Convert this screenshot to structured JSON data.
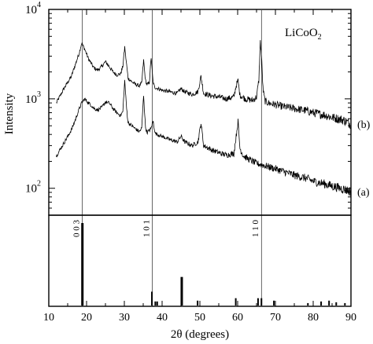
{
  "chart_data": {
    "type": "line",
    "xlabel": "2θ (degrees)",
    "ylabel": "Intensity",
    "xlim": [
      10,
      90
    ],
    "x_ticks": [
      10,
      20,
      30,
      40,
      50,
      60,
      70,
      80,
      90
    ],
    "upper_panel": {
      "yscale": "log",
      "ylim": [
        50,
        10000
      ],
      "y_ticks": [
        {
          "value": 100,
          "base": "10",
          "exp": "2"
        },
        {
          "value": 1000,
          "base": "10",
          "exp": "3"
        },
        {
          "value": 10000,
          "base": "10",
          "exp": "4"
        }
      ],
      "annotation": {
        "text_main": "LiCoO",
        "text_sub": "2"
      },
      "series": [
        {
          "name": "(b)",
          "x": [
            12,
            14,
            16,
            17,
            18,
            18.7,
            19.5,
            20.5,
            21.2,
            22,
            23,
            24,
            25,
            26,
            27,
            28,
            29,
            29.6,
            30.1,
            30.6,
            31,
            32,
            33,
            34,
            34.6,
            35.1,
            35.6,
            36,
            36.6,
            37.1,
            37.6,
            38,
            40,
            42,
            44,
            45,
            46,
            48,
            49.5,
            50.3,
            51,
            53,
            55,
            57,
            59,
            59.6,
            60.1,
            60.6,
            62,
            64,
            65,
            65.6,
            66,
            66.3,
            66.7,
            67.2,
            68,
            70,
            72,
            75,
            78,
            80,
            83,
            85,
            88,
            90
          ],
          "values": [
            900,
            1300,
            1800,
            2400,
            3200,
            4200,
            3600,
            2800,
            2500,
            2200,
            2100,
            2300,
            2600,
            2300,
            2000,
            1850,
            1900,
            2300,
            3800,
            2400,
            1700,
            1550,
            1450,
            1400,
            1500,
            2700,
            1600,
            1450,
            1500,
            2900,
            1550,
            1350,
            1250,
            1200,
            1150,
            1300,
            1200,
            1120,
            1200,
            1800,
            1150,
            1080,
            1050,
            1000,
            1050,
            1400,
            1600,
            1100,
            1000,
            960,
            1050,
            1600,
            4300,
            3100,
            1300,
            950,
            900,
            860,
            820,
            780,
            740,
            700,
            660,
            620,
            580,
            520
          ]
        },
        {
          "name": "(a)",
          "x": [
            12,
            14,
            16,
            17,
            18,
            18.7,
            19.5,
            20.5,
            21.2,
            22,
            23,
            24,
            25,
            26,
            27,
            28,
            29,
            29.6,
            30.1,
            30.6,
            31,
            32,
            33,
            34,
            34.6,
            35.1,
            35.6,
            36,
            37,
            37.6,
            38.2,
            40,
            42,
            44,
            45,
            46,
            48,
            49.5,
            50.3,
            51,
            53,
            55,
            57,
            59,
            59.6,
            60.1,
            60.6,
            61.5,
            63,
            65,
            67,
            70,
            72,
            75,
            78,
            80,
            83,
            85,
            88,
            90
          ],
          "values": [
            230,
            320,
            450,
            580,
            760,
            900,
            1000,
            900,
            850,
            780,
            750,
            800,
            920,
            900,
            780,
            700,
            650,
            720,
            1600,
            780,
            540,
            500,
            460,
            430,
            470,
            1100,
            480,
            420,
            460,
            560,
            410,
            380,
            350,
            330,
            380,
            330,
            300,
            330,
            540,
            300,
            270,
            250,
            235,
            245,
            380,
            560,
            280,
            230,
            210,
            190,
            180,
            165,
            155,
            140,
            130,
            120,
            112,
            106,
            98,
            92
          ]
        }
      ]
    },
    "lower_panel": {
      "type": "bar",
      "reference_lines": [
        {
          "x": 18.9,
          "label": "0 0 3"
        },
        {
          "x": 37.4,
          "label": "1 0 1"
        },
        {
          "x": 66.3,
          "label": "1 1 0"
        }
      ],
      "sticks": [
        {
          "x": 18.9,
          "value": 100
        },
        {
          "x": 37.3,
          "value": 16
        },
        {
          "x": 38.2,
          "value": 4
        },
        {
          "x": 38.7,
          "value": 4
        },
        {
          "x": 45.2,
          "value": 34
        },
        {
          "x": 49.4,
          "value": 5
        },
        {
          "x": 59.5,
          "value": 8
        },
        {
          "x": 65.4,
          "value": 8
        },
        {
          "x": 66.3,
          "value": 8
        },
        {
          "x": 69.6,
          "value": 5
        },
        {
          "x": 78.6,
          "value": 2
        },
        {
          "x": 82.1,
          "value": 4
        },
        {
          "x": 84.2,
          "value": 5
        },
        {
          "x": 86.1,
          "value": 3
        },
        {
          "x": 88.4,
          "value": 2
        }
      ]
    }
  }
}
